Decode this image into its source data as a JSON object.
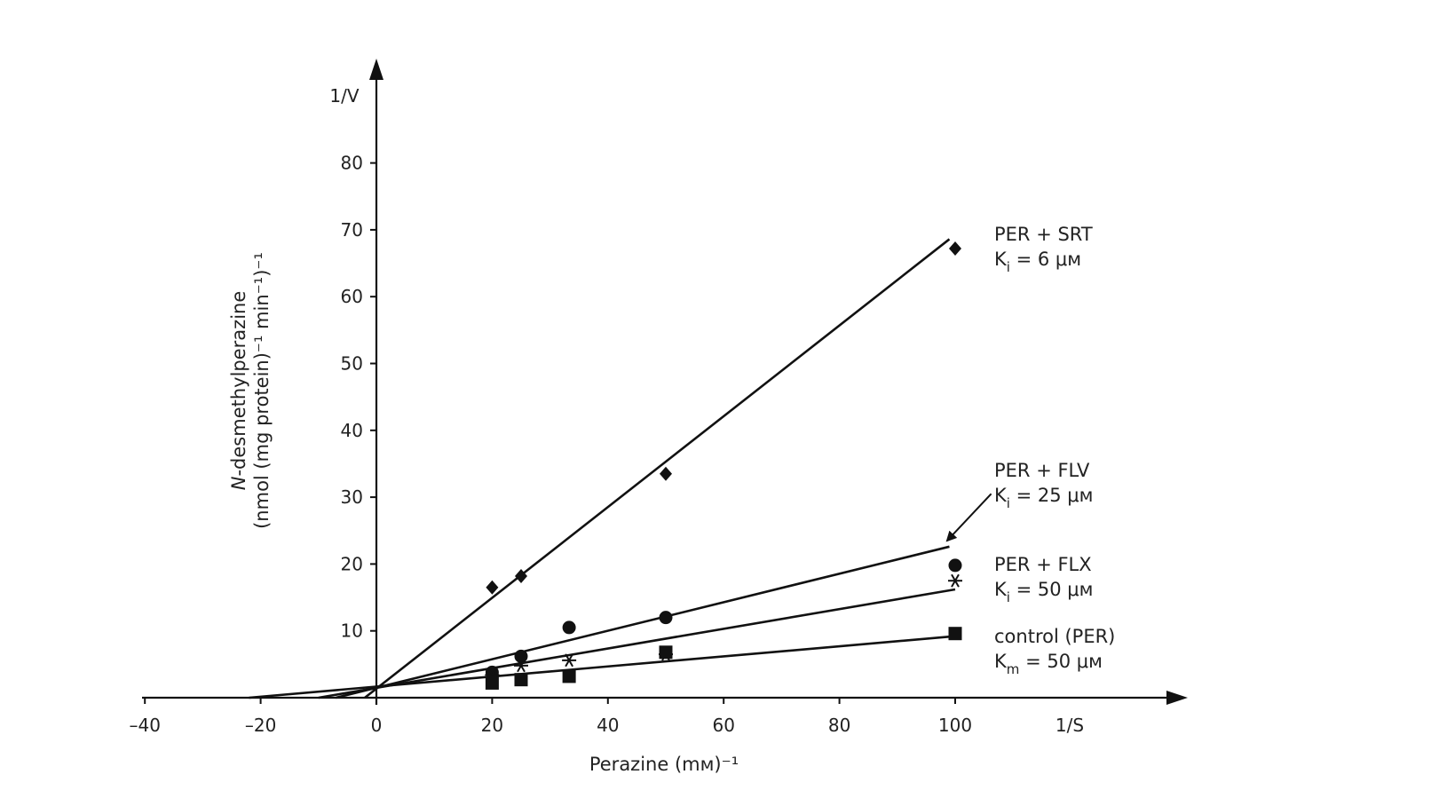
{
  "chart_data": {
    "type": "line",
    "xlabel": "Perazine (mм)⁻¹",
    "ylabel_line1": "N-desmethylperazine",
    "ylabel_line2": "(nmol (mg protein)⁻¹ min⁻¹)⁻¹",
    "x_axis_name": "1/S",
    "y_axis_name": "1/V",
    "xlim": [
      -40,
      140
    ],
    "ylim": [
      0,
      95
    ],
    "x_ticks": [
      -40,
      -20,
      0,
      20,
      40,
      60,
      80,
      100
    ],
    "x_tick_labels": [
      "–40",
      "–20",
      "0",
      "20",
      "40",
      "60",
      "80",
      "100"
    ],
    "y_ticks": [
      10,
      20,
      30,
      40,
      50,
      60,
      70,
      80
    ],
    "y_tick_labels": [
      "10",
      "20",
      "30",
      "40",
      "50",
      "60",
      "70",
      "80"
    ],
    "grid": false,
    "series": [
      {
        "key": "srt",
        "marker": "diamond",
        "points": [
          [
            20,
            16.5
          ],
          [
            25,
            18.2
          ],
          [
            50,
            33.5
          ],
          [
            100,
            67.2
          ]
        ],
        "line": [
          [
            -2,
            0
          ],
          [
            99,
            68.6
          ]
        ],
        "label_line1": "PER + SRT",
        "label_k": "K",
        "label_sub": "i",
        "label_val": " = 6 μм"
      },
      {
        "key": "flv",
        "marker": "circle",
        "points": [
          [
            20,
            3.8
          ],
          [
            25,
            6.2
          ],
          [
            33.3,
            10.5
          ],
          [
            50,
            12.0
          ],
          [
            100,
            19.8
          ]
        ],
        "line": [
          [
            -7,
            0
          ],
          [
            99,
            22.6
          ]
        ],
        "label_line1": "PER + FLV",
        "label_k": "K",
        "label_sub": "i",
        "label_val": " = 25 μм"
      },
      {
        "key": "flx",
        "marker": "asterisk",
        "points": [
          [
            20,
            3.4
          ],
          [
            25,
            4.8
          ],
          [
            33.3,
            5.6
          ],
          [
            50,
            6.5
          ],
          [
            100,
            17.5
          ]
        ],
        "line": [
          [
            -10,
            0
          ],
          [
            100,
            16.2
          ]
        ],
        "label_line1": "PER + FLX",
        "label_k": "K",
        "label_sub": "i",
        "label_val": " = 50 μм"
      },
      {
        "key": "control",
        "marker": "square",
        "points": [
          [
            20,
            2.2
          ],
          [
            25,
            2.7
          ],
          [
            33.3,
            3.2
          ],
          [
            50,
            6.8
          ],
          [
            100,
            9.6
          ]
        ],
        "line": [
          [
            -22,
            0
          ],
          [
            100,
            9.2
          ]
        ],
        "label_line1": "control (PER)",
        "label_k": "K",
        "label_sub": "m",
        "label_val": " = 50 μм"
      }
    ],
    "arrow_target": [
      98,
      23.5
    ],
    "arrow_from": [
      105,
      30.5
    ]
  }
}
